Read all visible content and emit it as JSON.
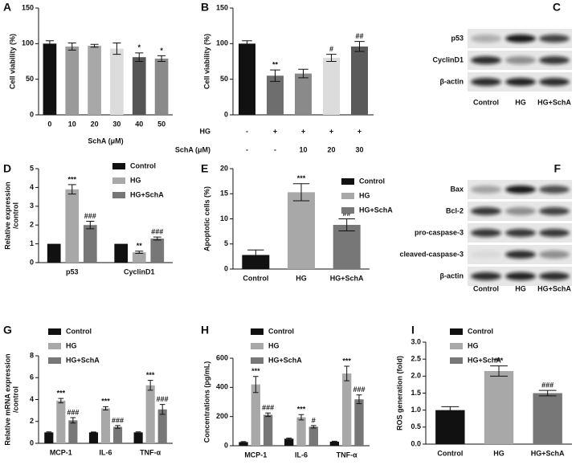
{
  "chart_data": [
    {
      "type": "bar",
      "panel": "A",
      "ylabel": "Cell viability (%)",
      "xlabel": "SchA (μM)",
      "categories": [
        "0",
        "10",
        "20",
        "30",
        "40",
        "50"
      ],
      "values": [
        100,
        96,
        97,
        93,
        81,
        79
      ],
      "errors": [
        4,
        5,
        2,
        8,
        6,
        4
      ],
      "annotations": [
        null,
        null,
        null,
        null,
        "*",
        "*"
      ],
      "colors": [
        "#111111",
        "#9a9a9a",
        "#a8a8a8",
        "#dcdcdc",
        "#555555",
        "#8a8a8a"
      ],
      "ylim": [
        0,
        150
      ],
      "yticks": [
        0,
        50,
        100,
        150
      ]
    },
    {
      "type": "bar",
      "panel": "B",
      "ylabel": "Cell viability (%)",
      "values": [
        100,
        55,
        58,
        80,
        96
      ],
      "errors": [
        4,
        8,
        6,
        5,
        7
      ],
      "annotations": [
        null,
        "**",
        null,
        "#",
        "##"
      ],
      "colors": [
        "#111111",
        "#6e6e6e",
        "#8a8a8a",
        "#dcdcdc",
        "#5a5a5a"
      ],
      "conditions": [
        {
          "label": "HG",
          "values": [
            "-",
            "+",
            "+",
            "+",
            "+"
          ]
        },
        {
          "label": "SchA (μM)",
          "values": [
            "-",
            "-",
            "10",
            "20",
            "30"
          ]
        }
      ],
      "ylim": [
        0,
        150
      ],
      "yticks": [
        0,
        50,
        100,
        150
      ]
    },
    {
      "type": "grouped_bar",
      "panel": "D",
      "ylabel": [
        "Relative expression",
        "/control"
      ],
      "categories": [
        "p53",
        "CyclinD1"
      ],
      "series": [
        {
          "name": "Control",
          "color": "#111111",
          "values": [
            1,
            1
          ]
        },
        {
          "name": "HG",
          "color": "#a8a8a8",
          "values": [
            3.9,
            0.55
          ],
          "errors": [
            0.25,
            0.06
          ],
          "annotations": [
            "***",
            "**"
          ]
        },
        {
          "name": "HG+SchA",
          "color": "#777777",
          "values": [
            2.0,
            1.28
          ],
          "errors": [
            0.2,
            0.08
          ],
          "annotations": [
            "###",
            "###"
          ]
        }
      ],
      "ylim": [
        0,
        5
      ],
      "yticks": [
        0,
        1,
        2,
        3,
        4,
        5
      ],
      "legend": true
    },
    {
      "type": "bar",
      "panel": "E",
      "ylabel": "Apoptotic cells (%)",
      "categories": [
        "Control",
        "HG",
        "HG+SchA"
      ],
      "values": [
        2.8,
        15.3,
        8.8
      ],
      "errors": [
        1.0,
        1.7,
        1.2
      ],
      "annotations": [
        null,
        "***",
        "##"
      ],
      "colors": [
        "#111111",
        "#a8a8a8",
        "#777777"
      ],
      "ylim": [
        0,
        20
      ],
      "yticks": [
        0,
        5,
        10,
        15,
        20
      ],
      "legend": true
    },
    {
      "type": "grouped_bar",
      "panel": "G",
      "ylabel": [
        "Relative mRNA expression",
        "/control"
      ],
      "categories": [
        "MCP-1",
        "IL-6",
        "TNF-α"
      ],
      "series": [
        {
          "name": "Control",
          "color": "#111111",
          "values": [
            1,
            1,
            1
          ],
          "errors": [
            0.05,
            0.04,
            0.05
          ]
        },
        {
          "name": "HG",
          "color": "#a8a8a8",
          "values": [
            3.9,
            3.2,
            5.3
          ],
          "errors": [
            0.2,
            0.15,
            0.45
          ],
          "annotations": [
            "***",
            "***",
            "***"
          ]
        },
        {
          "name": "HG+SchA",
          "color": "#777777",
          "values": [
            2.1,
            1.5,
            3.1
          ],
          "errors": [
            0.25,
            0.12,
            0.45
          ],
          "annotations": [
            "###",
            "###",
            "###"
          ]
        }
      ],
      "ylim": [
        0,
        8
      ],
      "yticks": [
        0,
        2,
        4,
        6,
        8
      ],
      "legend": true
    },
    {
      "type": "grouped_bar",
      "panel": "H",
      "ylabel": "Concentrations (pg/mL)",
      "categories": [
        "MCP-1",
        "IL-6",
        "TNF-α"
      ],
      "series": [
        {
          "name": "Control",
          "color": "#111111",
          "values": [
            25,
            48,
            28
          ],
          "errors": [
            3,
            4,
            3
          ]
        },
        {
          "name": "HG",
          "color": "#a8a8a8",
          "values": [
            420,
            195,
            495
          ],
          "errors": [
            55,
            18,
            50
          ],
          "annotations": [
            "***",
            "***",
            "***"
          ]
        },
        {
          "name": "HG+SchA",
          "color": "#777777",
          "values": [
            212,
            130,
            318
          ],
          "errors": [
            12,
            8,
            30
          ],
          "annotations": [
            "###",
            "#",
            "###"
          ]
        }
      ],
      "ylim": [
        0,
        600
      ],
      "yticks": [
        0,
        200,
        400,
        600
      ],
      "legend": true
    },
    {
      "type": "bar",
      "panel": "I",
      "ylabel": "ROS generation (fold)",
      "categories": [
        "Control",
        "HG",
        "HG+SchA"
      ],
      "values": [
        1.0,
        2.15,
        1.5
      ],
      "errors": [
        0.1,
        0.15,
        0.08
      ],
      "annotations": [
        null,
        "***",
        "###"
      ],
      "colors": [
        "#111111",
        "#a8a8a8",
        "#777777"
      ],
      "ylim": [
        0,
        3
      ],
      "yticks": [
        {
          "value": 0,
          "label": "0.0"
        },
        0.5,
        {
          "value": 1,
          "label": "1.0"
        },
        1.5,
        {
          "value": 2,
          "label": "2.0"
        },
        2.5,
        {
          "value": 3,
          "label": "3.0"
        }
      ],
      "legend": true
    }
  ],
  "blots": [
    {
      "panel": "C",
      "rows": [
        "p53",
        "CyclinD1",
        "β-actin"
      ],
      "columns": [
        "Control",
        "HG",
        "HG+SchA"
      ]
    },
    {
      "panel": "F",
      "rows": [
        "Bax",
        "Bcl-2",
        "pro-caspase-3",
        "cleaved-caspase-3",
        "β-actin"
      ],
      "columns": [
        "Control",
        "HG",
        "HG+SchA"
      ]
    }
  ]
}
